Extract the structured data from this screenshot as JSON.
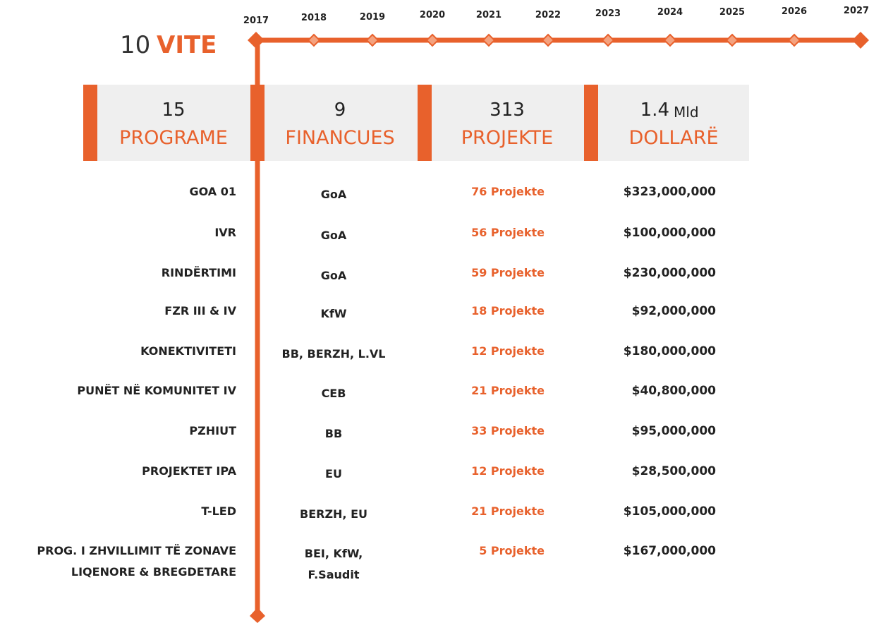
{
  "title": {
    "number": "10",
    "word": "VITE"
  },
  "timeline": {
    "years": [
      "2017",
      "2018",
      "2019",
      "2020",
      "2021",
      "2022",
      "2023",
      "2024",
      "2025",
      "2026",
      "2027"
    ]
  },
  "summary": [
    {
      "number": "15",
      "label": "PROGRAME"
    },
    {
      "number": "9",
      "label": "FINANCUES"
    },
    {
      "number": "313",
      "label": "PROJEKTE"
    },
    {
      "number": "1.4",
      "unit": "Mld",
      "label": "DOLLARË"
    }
  ],
  "table": {
    "rows": [
      {
        "program": [
          "GOA 01"
        ],
        "financer": [
          "GoA"
        ],
        "projects": "76 Projekte",
        "amount": "$323,000,000"
      },
      {
        "program": [
          "IVR"
        ],
        "financer": [
          "GoA"
        ],
        "projects": "56 Projekte",
        "amount": "$100,000,000"
      },
      {
        "program": [
          "RINDËRTIMI"
        ],
        "financer": [
          "GoA"
        ],
        "projects": "59 Projekte",
        "amount": "$230,000,000"
      },
      {
        "program": [
          "FZR III & IV"
        ],
        "financer": [
          "KfW"
        ],
        "projects": "18 Projekte",
        "amount": "$92,000,000"
      },
      {
        "program": [
          "KONEKTIVITETI"
        ],
        "financer": [
          "BB, BERZH, L.VL"
        ],
        "projects": "12 Projekte",
        "amount": "$180,000,000"
      },
      {
        "program": [
          "PUNËT NË KOMUNITET IV"
        ],
        "financer": [
          "CEB"
        ],
        "projects": "21 Projekte",
        "amount": "$40,800,000"
      },
      {
        "program": [
          "PZHIUT"
        ],
        "financer": [
          "BB"
        ],
        "projects": "33 Projekte",
        "amount": "$95,000,000"
      },
      {
        "program": [
          "PROJEKTET IPA"
        ],
        "financer": [
          "EU"
        ],
        "projects": "12 Projekte",
        "amount": "$28,500,000"
      },
      {
        "program": [
          "T-LED"
        ],
        "financer": [
          "BERZH, EU"
        ],
        "projects": "21 Projekte",
        "amount": "$105,000,000"
      },
      {
        "program": [
          "PROG. I ZHVILLIMIT TË ZONAVE",
          "LIQENORE & BREGDETARE"
        ],
        "financer": [
          "BEI, KfW,",
          "F.Saudit"
        ],
        "projects": "5 Projekte",
        "amount": "$167,000,000"
      }
    ]
  }
}
